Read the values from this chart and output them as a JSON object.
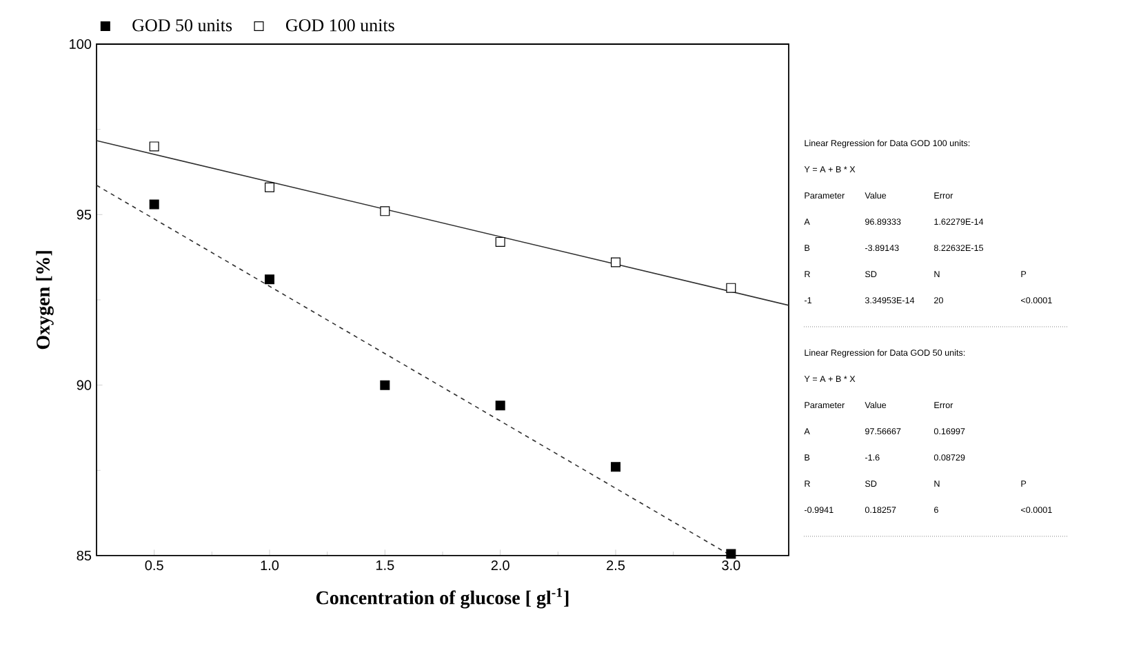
{
  "chart_data": {
    "type": "scatter",
    "xlabel": "Concentration of glucose [ gl$^{-1}$]",
    "ylabel": "Oxygen [%]",
    "xlim": [
      0.25,
      3.25
    ],
    "ylim": [
      85,
      100
    ],
    "xticks": [
      0.5,
      {
        "value": 1,
        "label": "1.0"
      },
      1.5,
      {
        "value": 2,
        "label": "2.0"
      },
      2.5,
      {
        "value": 3,
        "label": "3.0"
      }
    ],
    "yticks": [
      85,
      90,
      95,
      100
    ],
    "marker": "square",
    "legend": "top",
    "grid": false,
    "series": [
      {
        "name": "GOD 50 units",
        "color": "#000000",
        "x": [
          0.5,
          1.0,
          1.5,
          2.0,
          2.5,
          3.0
        ],
        "values": [
          95.3,
          93.1,
          90.0,
          89.4,
          87.6,
          85.05
        ]
      },
      {
        "name": "GOD 100 units",
        "color": "#ffffff",
        "x": [
          0.5,
          1.0,
          1.5,
          2.0,
          2.5,
          3.0
        ],
        "values": [
          97.0,
          95.8,
          95.1,
          94.2,
          93.6,
          92.85
        ]
      },
      {
        "type": "line",
        "marker": "none",
        "line_style": "solid",
        "color": "#303030",
        "x": [
          0.25,
          3.25
        ],
        "values": [
          97.17,
          92.34
        ]
      },
      {
        "type": "line",
        "marker": "none",
        "line_style": "dashed",
        "color": "#303030",
        "x": [
          0.25,
          3.0
        ],
        "values": [
          95.86,
          85.0
        ]
      }
    ],
    "annotations": [
      "Linear Regression for Data GOD 100 units:",
      "Y = A + B * X",
      "Parameter",
      "Value",
      "Error",
      "A",
      "96.89333",
      "1.62279E-14",
      "B",
      "-3.89143",
      "8.22632E-15",
      "R",
      "SD",
      "N",
      "P",
      "-1",
      "3.34953E-14",
      "20",
      "<0.0001",
      "Linear Regression for Data GOD 50 units:",
      "Y = A + B * X",
      "Parameter",
      "Value",
      "Error",
      "A",
      "97.56667",
      "0.16997",
      "B",
      "-1.6",
      "0.08729",
      "R",
      "SD",
      "N",
      "P",
      "-0.9941",
      "0.18257",
      "6",
      "<0.0001"
    ]
  }
}
